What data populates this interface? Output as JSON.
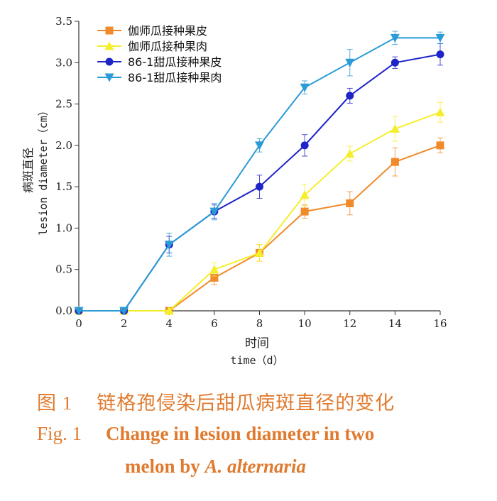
{
  "chart_data": {
    "type": "line",
    "x": [
      0,
      2,
      4,
      6,
      8,
      10,
      12,
      14,
      16
    ],
    "xlim": [
      0,
      16
    ],
    "ylim": [
      0,
      3.5
    ],
    "xticks": [
      "0",
      "2",
      "4",
      "6",
      "8",
      "10",
      "12",
      "14",
      "16"
    ],
    "yticks": [
      "0.0",
      "0.5",
      "1.0",
      "1.5",
      "2.0",
      "2.5",
      "3.0",
      "3.5"
    ],
    "xlabel_cn": "时间",
    "xlabel_en": "time（d）",
    "ylabel_cn": "病斑直径",
    "ylabel_en": "lesion diameter（cm）",
    "legend_position": "top-left",
    "series": [
      {
        "name": "伽师瓜接种果皮",
        "color": "#f08a2a",
        "marker": "square",
        "values": [
          0,
          0,
          0,
          0.4,
          0.7,
          1.2,
          1.3,
          1.8,
          2.0
        ],
        "errors": [
          0,
          0,
          0,
          0.08,
          0.1,
          0.08,
          0.14,
          0.17,
          0.09
        ]
      },
      {
        "name": "伽师瓜接种果肉",
        "color": "#f5ef2a",
        "marker": "triangle-up",
        "values": [
          0,
          0,
          0,
          0.5,
          0.7,
          1.4,
          1.9,
          2.2,
          2.4
        ],
        "errors": [
          0,
          0,
          0,
          0.08,
          0.1,
          0.13,
          0.09,
          0.15,
          0.12
        ]
      },
      {
        "name": "86-1甜瓜接种果皮",
        "color": "#1f24c8",
        "marker": "circle",
        "values": [
          0,
          0,
          0.8,
          1.2,
          1.5,
          2.0,
          2.6,
          3.0,
          3.1
        ],
        "errors": [
          0,
          0,
          0.1,
          0.08,
          0.14,
          0.13,
          0.09,
          0.07,
          0.13
        ]
      },
      {
        "name": "86-1甜瓜接种果肉",
        "color": "#2b9bd6",
        "marker": "triangle-down",
        "values": [
          0,
          0,
          0.8,
          1.2,
          2.0,
          2.7,
          3.0,
          3.3,
          3.3
        ],
        "errors": [
          0,
          0,
          0.14,
          0.1,
          0.08,
          0.08,
          0.16,
          0.08,
          0.07
        ]
      }
    ]
  },
  "caption": {
    "cn_num": "图 1",
    "cn_text": "链格孢侵染后甜瓜病斑直径的变化",
    "en_num": "Fig. 1",
    "en_line1": "Change in lesion diameter in two",
    "en_line2_a": "melon by ",
    "en_line2_b": "A. alternaria"
  }
}
